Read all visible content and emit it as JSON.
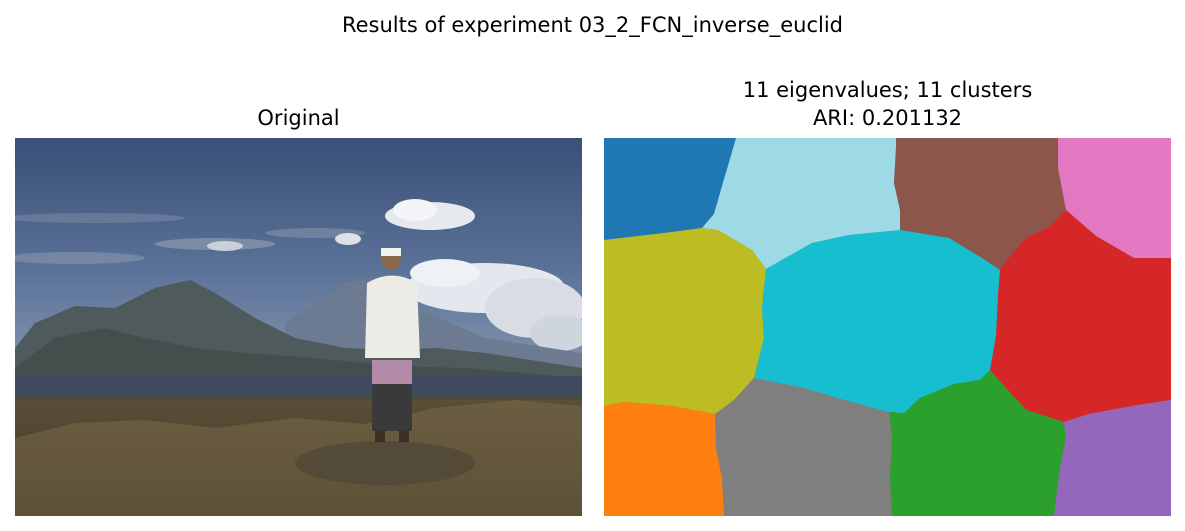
{
  "figure": {
    "suptitle": "Results of experiment 03_2_FCN_inverse_euclid"
  },
  "panels": {
    "original": {
      "title": "Original",
      "image_description_elements": [
        "sky",
        "clouds",
        "mountains",
        "lake",
        "man-in-white-shirt",
        "dry-grass-foreground"
      ]
    },
    "segmentation": {
      "title_line1": "11 eigenvalues; 11 clusters",
      "title_line2": "ARI: 0.201132",
      "cluster_count": 11,
      "eigenvalue_count": 11,
      "ari": 0.201132,
      "clusters": [
        {
          "id": "cluster-blue",
          "color": "#1f77b4"
        },
        {
          "id": "cluster-lightblue",
          "color": "#9edae5"
        },
        {
          "id": "cluster-brown",
          "color": "#8c564b"
        },
        {
          "id": "cluster-pink",
          "color": "#e377c2"
        },
        {
          "id": "cluster-olive",
          "color": "#bcbd22"
        },
        {
          "id": "cluster-cyan",
          "color": "#17becf"
        },
        {
          "id": "cluster-red",
          "color": "#d62728"
        },
        {
          "id": "cluster-orange",
          "color": "#ff7f0e"
        },
        {
          "id": "cluster-gray",
          "color": "#7f7f7f"
        },
        {
          "id": "cluster-green",
          "color": "#2ca02c"
        },
        {
          "id": "cluster-purple",
          "color": "#9467bd"
        }
      ]
    }
  }
}
